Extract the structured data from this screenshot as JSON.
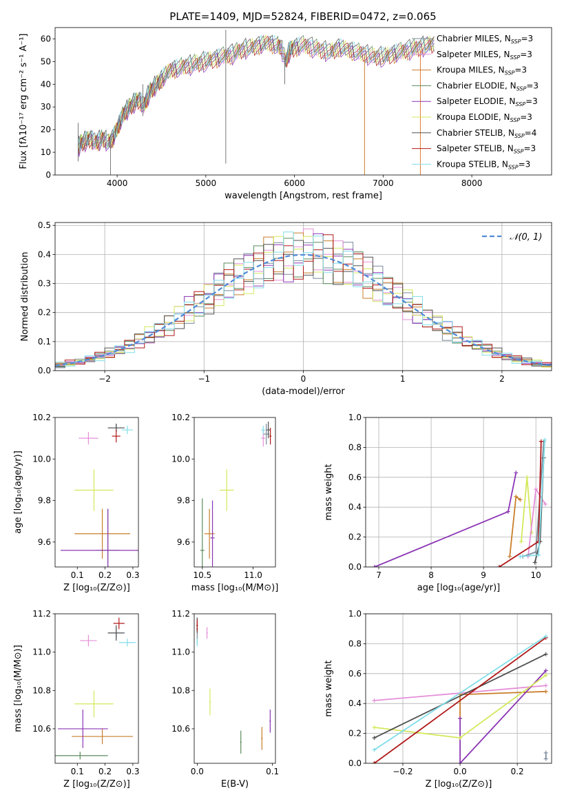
{
  "figure": {
    "title": "PLATE=1409, MJD=52824, FIBERID=0472, z=0.065"
  },
  "models": [
    {
      "name": "Chabrier MILES",
      "nssp": "3",
      "color": "#7a8a9a"
    },
    {
      "name": "Salpeter MILES",
      "nssp": "3",
      "color": "#e58fd8"
    },
    {
      "name": "Kroupa MILES",
      "nssp": "3",
      "color": "#c87d2a"
    },
    {
      "name": "Chabrier ELODIE",
      "nssp": "3",
      "color": "#5a8a5a"
    },
    {
      "name": "Salpeter ELODIE",
      "nssp": "3",
      "color": "#8b35b5"
    },
    {
      "name": "Kroupa ELODIE",
      "nssp": "3",
      "color": "#d4e85a"
    },
    {
      "name": "Chabrier STELIB",
      "nssp": "4",
      "color": "#505050"
    },
    {
      "name": "Salpeter STELIB",
      "nssp": "3",
      "color": "#b01818"
    },
    {
      "name": "Kroupa STELIB",
      "nssp": "3",
      "color": "#80dde8"
    }
  ],
  "chart_data": [
    {
      "id": "spectrum",
      "type": "line",
      "title": "PLATE=1409, MJD=52824, FIBERID=0472, z=0.065",
      "xlabel": "wavelength [Angstrom, rest frame]",
      "ylabel": "Flux [fλ10⁻¹⁷ erg cm⁻² s⁻¹ A⁻¹]",
      "xlim": [
        3300,
        8900
      ],
      "ylim": [
        0,
        65
      ],
      "xticks": [
        4000,
        5000,
        6000,
        7000,
        8000
      ],
      "yticks": [
        0,
        10,
        20,
        30,
        40,
        50,
        60
      ],
      "grid": false,
      "legend": "right",
      "x": [
        3560,
        3600,
        3650,
        3700,
        3750,
        3800,
        3850,
        3900,
        3950,
        4000,
        4050,
        4100,
        4150,
        4200,
        4250,
        4300,
        4350,
        4400,
        4450,
        4500,
        4600,
        4700,
        4800,
        4900,
        5000,
        5100,
        5200,
        5300,
        5400,
        5500,
        5600,
        5700,
        5800,
        5850,
        5900,
        5950,
        6000,
        6100,
        6200,
        6300,
        6400,
        6500,
        6600,
        6700,
        6800,
        6900,
        7000,
        7100,
        7200,
        7300,
        7400,
        7500,
        7600
      ],
      "y": [
        12,
        14,
        15,
        16,
        14,
        15,
        16,
        14,
        16,
        20,
        25,
        28,
        30,
        32,
        33,
        30,
        35,
        38,
        40,
        42,
        46,
        47,
        48,
        49,
        50,
        51,
        52,
        53,
        55,
        56,
        57,
        58,
        57,
        56,
        50,
        55,
        56,
        57,
        56,
        55,
        54,
        56,
        55,
        54,
        53,
        52,
        52,
        53,
        54,
        55,
        56,
        57,
        58
      ],
      "spikes": [
        {
          "x": 3560,
          "lo": 6,
          "hi": 23
        },
        {
          "x": 3925,
          "lo": 0,
          "hi": 15
        },
        {
          "x": 4290,
          "lo": 26,
          "hi": 40
        },
        {
          "x": 5225,
          "lo": 5,
          "hi": 64
        },
        {
          "x": 5890,
          "lo": 40,
          "hi": 52
        },
        {
          "x": 6790,
          "lo": 0,
          "hi": 53
        },
        {
          "x": 7420,
          "lo": 0,
          "hi": 55
        }
      ]
    },
    {
      "id": "residual-histogram",
      "type": "line",
      "xlabel": "(data-model)/error",
      "ylabel": "Normed distribution",
      "xlim": [
        -2.5,
        2.5
      ],
      "ylim": [
        0,
        0.51
      ],
      "xticks": [
        -2,
        -1,
        0,
        1,
        2
      ],
      "yticks": [
        0.0,
        0.1,
        0.2,
        0.3,
        0.4,
        0.5
      ],
      "grid": true,
      "legend": "top-right",
      "series": [
        {
          "name": "𝒩(0, 1)",
          "x_from": -2.5,
          "x_to": 2.5,
          "mu": 0,
          "sigma": 1
        }
      ],
      "bin_edges_from": -2.5,
      "bin_width": 0.1,
      "bins": 50
    },
    {
      "id": "age-vs-z",
      "type": "scatter",
      "xlabel": "Z [log₁₀(Z/Z⊙)]",
      "ylabel": "age  [log₁₀(age/yr)]",
      "xlim": [
        0.02,
        0.32
      ],
      "ylim": [
        9.48,
        10.2
      ],
      "xticks": [
        0.1,
        0.2,
        0.3
      ],
      "yticks": [
        9.6,
        9.8,
        10.0,
        10.2
      ],
      "grid": false,
      "points": [
        {
          "model": 0,
          "x": 0.24,
          "y": 10.15,
          "xerr": 0.03,
          "yerr": 0.02
        },
        {
          "model": 1,
          "x": 0.14,
          "y": 10.1,
          "xerr": 0.035,
          "yerr": 0.03
        },
        {
          "model": 2,
          "x": 0.19,
          "y": 9.64,
          "xerr": 0.1,
          "yerr": 0.12
        },
        {
          "model": 3,
          "x": 0.21,
          "y": 9.56,
          "xerr": 0.04,
          "yerr": 0.2
        },
        {
          "model": 4,
          "x": 0.21,
          "y": 9.56,
          "xerr": 0.17,
          "yerr": 0.2
        },
        {
          "model": 5,
          "x": 0.16,
          "y": 9.85,
          "xerr": 0.07,
          "yerr": 0.1
        },
        {
          "model": 6,
          "x": 0.24,
          "y": 10.15,
          "xerr": 0.03,
          "yerr": 0.02
        },
        {
          "model": 7,
          "x": 0.24,
          "y": 10.11,
          "xerr": 0.015,
          "yerr": 0.03
        },
        {
          "model": 8,
          "x": 0.28,
          "y": 10.14,
          "xerr": 0.02,
          "yerr": 0.02
        }
      ]
    },
    {
      "id": "age-vs-mass",
      "type": "scatter",
      "xlabel": "mass [log₁₀(M/M⊙)]",
      "ylabel": "",
      "xlim": [
        10.42,
        11.22
      ],
      "ylim": [
        9.48,
        10.2
      ],
      "xticks": [
        10.5,
        11.0
      ],
      "yticks": [
        9.6,
        9.8,
        10.0,
        10.2
      ],
      "grid": false,
      "points": [
        {
          "model": 0,
          "x": 11.13,
          "y": 10.12,
          "xerr": 0.03,
          "yerr": 0.05
        },
        {
          "model": 1,
          "x": 11.1,
          "y": 10.1,
          "xerr": 0.02,
          "yerr": 0.04
        },
        {
          "model": 2,
          "x": 10.57,
          "y": 9.64,
          "xerr": 0.05,
          "yerr": 0.12
        },
        {
          "model": 3,
          "x": 10.5,
          "y": 9.56,
          "xerr": 0.02,
          "yerr": 0.25
        },
        {
          "model": 4,
          "x": 10.6,
          "y": 9.62,
          "xerr": 0.02,
          "yerr": 0.18
        },
        {
          "model": 5,
          "x": 10.74,
          "y": 9.85,
          "xerr": 0.07,
          "yerr": 0.1
        },
        {
          "model": 6,
          "x": 11.15,
          "y": 10.14,
          "xerr": 0.02,
          "yerr": 0.04
        },
        {
          "model": 7,
          "x": 11.17,
          "y": 10.11,
          "xerr": 0.01,
          "yerr": 0.04
        },
        {
          "model": 8,
          "x": 11.1,
          "y": 10.14,
          "xerr": 0.02,
          "yerr": 0.02
        }
      ]
    },
    {
      "id": "mass-weight-vs-age",
      "type": "line",
      "xlabel": "age  [log₁₀(age/yr)]",
      "ylabel": "mass weight",
      "xlim": [
        6.75,
        10.3
      ],
      "ylim": [
        0,
        1
      ],
      "xticks": [
        7,
        8,
        9,
        10
      ],
      "yticks": [
        0.0,
        0.2,
        0.4,
        0.6,
        0.8,
        1.0
      ],
      "grid": true,
      "series": [
        {
          "model": 4,
          "x": [
            6.92,
            9.47,
            9.62
          ],
          "y": [
            0.0,
            0.37,
            0.63
          ]
        },
        {
          "model": 2,
          "x": [
            9.5,
            9.62,
            9.7
          ],
          "y": [
            0.07,
            0.47,
            0.45
          ]
        },
        {
          "model": 5,
          "x": [
            9.72,
            9.83,
            9.92
          ],
          "y": [
            0.17,
            0.6,
            0.23
          ]
        },
        {
          "model": 1,
          "x": [
            9.85,
            10.0,
            10.18
          ],
          "y": [
            0.07,
            0.52,
            0.42
          ]
        },
        {
          "model": 0,
          "x": [
            9.75,
            10.0,
            10.15
          ],
          "y": [
            0.07,
            0.1,
            0.84
          ]
        },
        {
          "model": 6,
          "x": [
            9.98,
            10.08,
            10.15
          ],
          "y": [
            0.03,
            0.17,
            0.73
          ]
        },
        {
          "model": 7,
          "x": [
            9.3,
            10.05,
            10.1
          ],
          "y": [
            0.0,
            0.17,
            0.84
          ]
        },
        {
          "model": 8,
          "x": [
            9.7,
            10.05,
            10.17
          ],
          "y": [
            0.07,
            0.08,
            0.85
          ]
        }
      ]
    },
    {
      "id": "mass-vs-z",
      "type": "scatter",
      "xlabel": "Z [log₁₀(Z/Z⊙)]",
      "ylabel": "mass [log₁₀(M/M⊙)]",
      "xlim": [
        0.02,
        0.32
      ],
      "ylim": [
        10.42,
        11.2
      ],
      "xticks": [
        0.1,
        0.2,
        0.3
      ],
      "yticks": [
        10.6,
        10.8,
        11.0,
        11.2
      ],
      "grid": false,
      "points": [
        {
          "model": 0,
          "x": 0.24,
          "y": 11.1,
          "xerr": 0.03,
          "yerr": 0.03
        },
        {
          "model": 1,
          "x": 0.14,
          "y": 11.06,
          "xerr": 0.03,
          "yerr": 0.03
        },
        {
          "model": 2,
          "x": 0.19,
          "y": 10.56,
          "xerr": 0.11,
          "yerr": 0.04
        },
        {
          "model": 3,
          "x": 0.11,
          "y": 10.46,
          "xerr": 0.1,
          "yerr": 0.02
        },
        {
          "model": 4,
          "x": 0.12,
          "y": 10.6,
          "xerr": 0.09,
          "yerr": 0.1
        },
        {
          "model": 5,
          "x": 0.16,
          "y": 10.73,
          "xerr": 0.07,
          "yerr": 0.07
        },
        {
          "model": 6,
          "x": 0.24,
          "y": 11.1,
          "xerr": 0.03,
          "yerr": 0.04
        },
        {
          "model": 7,
          "x": 0.25,
          "y": 11.15,
          "xerr": 0.02,
          "yerr": 0.03
        },
        {
          "model": 8,
          "x": 0.28,
          "y": 11.05,
          "xerr": 0.03,
          "yerr": 0.02
        }
      ]
    },
    {
      "id": "mass-vs-ebv",
      "type": "scatter",
      "xlabel": "E(B-V)",
      "ylabel": "",
      "xlim": [
        -0.004,
        0.104
      ],
      "ylim": [
        10.42,
        11.2
      ],
      "xticks": [
        0.0,
        0.1
      ],
      "yticks": [
        10.6,
        10.8,
        11.0,
        11.2
      ],
      "grid": false,
      "points": [
        {
          "model": 0,
          "x": 0.0,
          "y": 11.12,
          "xerr": 0.001,
          "yerr": 0.06
        },
        {
          "model": 1,
          "x": 0.013,
          "y": 11.1,
          "xerr": 0.001,
          "yerr": 0.03
        },
        {
          "model": 2,
          "x": 0.086,
          "y": 10.55,
          "xerr": 0.001,
          "yerr": 0.06
        },
        {
          "model": 3,
          "x": 0.058,
          "y": 10.53,
          "xerr": 0.001,
          "yerr": 0.06
        },
        {
          "model": 4,
          "x": 0.097,
          "y": 10.64,
          "xerr": 0.001,
          "yerr": 0.06
        },
        {
          "model": 5,
          "x": 0.017,
          "y": 10.74,
          "xerr": 0.001,
          "yerr": 0.07
        },
        {
          "model": 6,
          "x": 0.0,
          "y": 11.14,
          "xerr": 0.001,
          "yerr": 0.04
        },
        {
          "model": 7,
          "x": 0.0,
          "y": 11.14,
          "xerr": 0.001,
          "yerr": 0.03
        },
        {
          "model": 8,
          "x": 0.0,
          "y": 11.05,
          "xerr": 0.001,
          "yerr": 0.02
        }
      ]
    },
    {
      "id": "mass-weight-vs-z",
      "type": "line",
      "xlabel": "Z [log₁₀(Z/Z⊙)]",
      "ylabel": "mass weight",
      "xlim": [
        -0.33,
        0.32
      ],
      "ylim": [
        0,
        1
      ],
      "xticks": [
        -0.2,
        0.0,
        0.2
      ],
      "yticks": [
        0.0,
        0.2,
        0.4,
        0.6,
        0.8,
        1.0
      ],
      "grid": true,
      "series": [
        {
          "model": 1,
          "x": [
            -0.3,
            0.3
          ],
          "y": [
            0.42,
            0.52
          ]
        },
        {
          "model": 2,
          "x": [
            0.0,
            0.0,
            0.3
          ],
          "y": [
            0.3,
            0.46,
            0.48
          ]
        },
        {
          "model": 4,
          "x": [
            0.0,
            0.0,
            0.3
          ],
          "y": [
            0.3,
            0.0,
            0.62
          ]
        },
        {
          "model": 5,
          "x": [
            -0.3,
            0.0,
            0.3
          ],
          "y": [
            0.24,
            0.17,
            0.59
          ]
        },
        {
          "model": 6,
          "x": [
            -0.3,
            0.3
          ],
          "y": [
            0.17,
            0.73
          ]
        },
        {
          "model": 7,
          "x": [
            -0.3,
            -0.3,
            0.3
          ],
          "y": [
            0.0,
            0.0,
            0.84
          ]
        },
        {
          "model": 8,
          "x": [
            -0.3,
            0.3
          ],
          "y": [
            0.09,
            0.85
          ]
        },
        {
          "model": 0,
          "x": [
            0.3,
            0.3
          ],
          "y": [
            0.03,
            0.07
          ]
        }
      ]
    }
  ]
}
